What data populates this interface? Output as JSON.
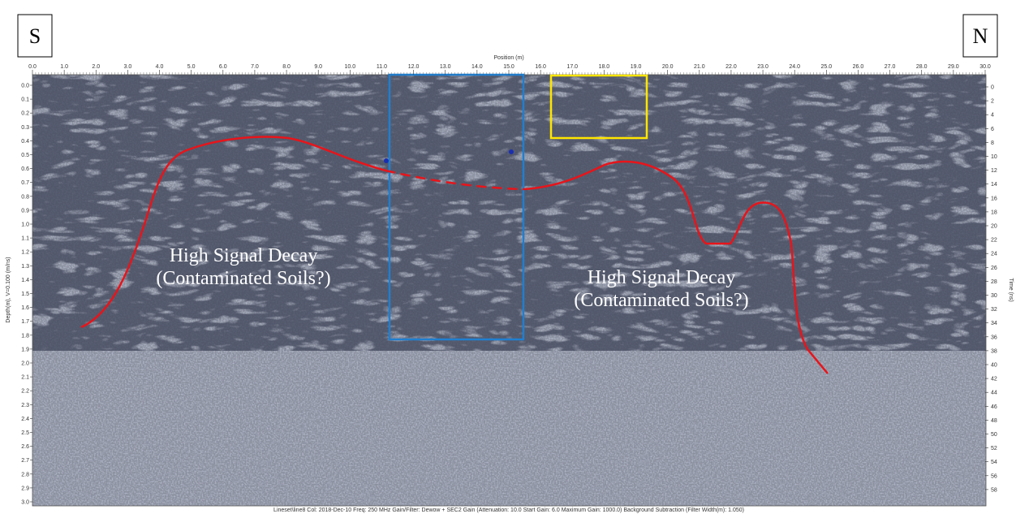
{
  "markers": {
    "left": "S",
    "right": "N"
  },
  "axes": {
    "top_title": "Position (m)",
    "left_title": "Depth(m), V=0.100 (m/ns)",
    "right_title": "Time (ns)",
    "position_labels": [
      "0.0",
      "1.0",
      "2.0",
      "3.0",
      "4.0",
      "5.0",
      "6.0",
      "7.0",
      "8.0",
      "9.0",
      "10.0",
      "11.0",
      "12.0",
      "13.0",
      "14.0",
      "15.0",
      "16.0",
      "17.0",
      "18.0",
      "19.0",
      "20.0",
      "21.0",
      "22.0",
      "23.0",
      "24.0",
      "25.0",
      "26.0",
      "27.0",
      "28.0",
      "29.0",
      "30.0"
    ],
    "depth_labels": [
      "0.0",
      "0.1",
      "0.2",
      "0.3",
      "0.4",
      "0.5",
      "0.6",
      "0.7",
      "0.8",
      "0.9",
      "1.0",
      "1.1",
      "1.2",
      "1.3",
      "1.4",
      "1.5",
      "1.6",
      "1.7",
      "1.8",
      "1.9",
      "2.0",
      "2.1",
      "2.2",
      "2.3",
      "2.4",
      "2.5",
      "2.6",
      "2.7",
      "2.8",
      "2.9",
      "3.0"
    ],
    "time_labels": [
      0,
      2,
      4,
      6,
      8,
      10,
      12,
      14,
      16,
      18,
      20,
      22,
      24,
      26,
      28,
      30,
      32,
      34,
      36,
      38,
      40,
      42,
      44,
      46,
      48,
      50,
      52,
      54,
      56,
      58
    ]
  },
  "annotations": [
    {
      "line1": "High Signal Decay",
      "line2": "(Contaminated Soils?)"
    },
    {
      "line1": "High Signal Decay",
      "line2": "(Contaminated Soils?)"
    }
  ],
  "footer": "Lineset\\line8  Col: 2018-Dec-10  Freq: 250 MHz  Gain/Filter: Dewow + SEC2 Gain (Attenuation: 10.0  Start Gain: 6.0  Maximum Gain: 1000.0)  Background Subtraction (Filter Width(m): 1.050)"
}
